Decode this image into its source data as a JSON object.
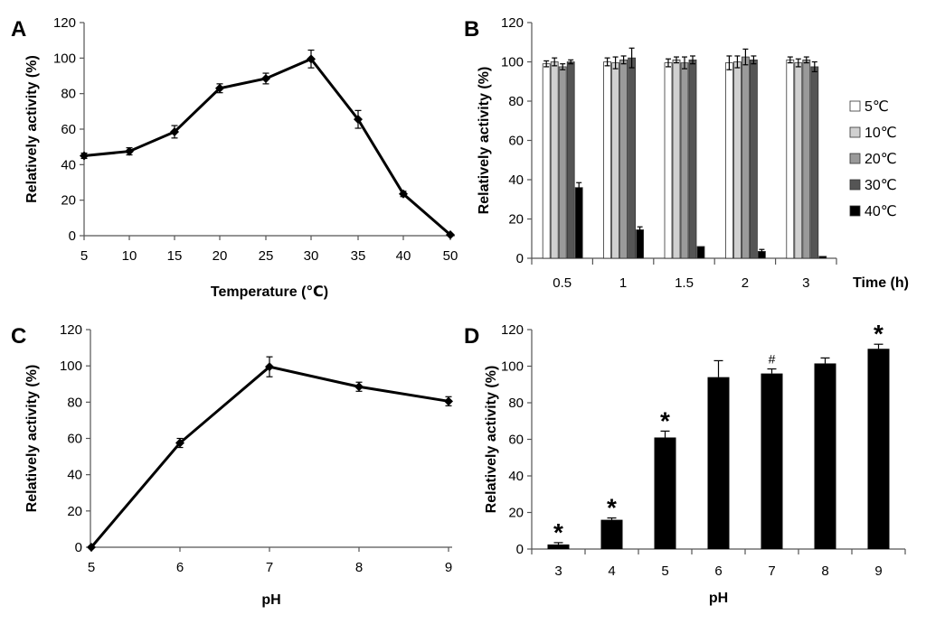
{
  "chart_data": [
    {
      "panel": "A",
      "type": "line",
      "x": [
        "5",
        "10",
        "15",
        "20",
        "25",
        "30",
        "35",
        "40",
        "50"
      ],
      "values": [
        45,
        47.5,
        58.5,
        83,
        88.5,
        99.5,
        65.5,
        23.5,
        0.5
      ],
      "errors": [
        1.5,
        2,
        3.5,
        2.5,
        3,
        5,
        5,
        1.5,
        0.5
      ],
      "ylim": [
        0,
        120
      ],
      "yticks": [
        "0",
        "20",
        "40",
        "60",
        "80",
        "100",
        "120"
      ],
      "xlabel": "Temperature (℃)",
      "ylabel": "Relatively activity (%)"
    },
    {
      "panel": "B",
      "type": "bar",
      "categories": [
        "0.5",
        "1",
        "1.5",
        "2",
        "3"
      ],
      "xlabel": "Time (h)",
      "ylabel": "Relatively activity (%)",
      "ylim": [
        0,
        120
      ],
      "yticks": [
        "0",
        "20",
        "40",
        "60",
        "80",
        "100",
        "120"
      ],
      "legend_position": "right",
      "series": [
        {
          "name": "5℃",
          "color": "#ffffff",
          "values": [
            99,
            100,
            99.5,
            99.5,
            101
          ],
          "errors": [
            1.5,
            2,
            2,
            3.5,
            1.5
          ]
        },
        {
          "name": "10℃",
          "color": "#d0d0d0",
          "values": [
            100,
            99.5,
            101,
            100,
            99.5
          ],
          "errors": [
            2,
            3,
            1.5,
            3,
            2
          ]
        },
        {
          "name": "20℃",
          "color": "#9a9a9a",
          "values": [
            97.5,
            101,
            99.5,
            102.5,
            101
          ],
          "errors": [
            1.5,
            2,
            3,
            4,
            1.5
          ]
        },
        {
          "name": "30℃",
          "color": "#555555",
          "values": [
            100,
            102,
            101,
            101,
            97.5
          ],
          "errors": [
            1,
            5,
            2,
            2,
            2.5
          ]
        },
        {
          "name": "40℃",
          "color": "#000000",
          "values": [
            36,
            14.5,
            6,
            3.5,
            1
          ],
          "errors": [
            2.5,
            1.5,
            0,
            1,
            0
          ]
        }
      ]
    },
    {
      "panel": "C",
      "type": "line",
      "x": [
        "5",
        "6",
        "7",
        "8",
        "9"
      ],
      "values": [
        0,
        57.5,
        99.5,
        88.5,
        80.5
      ],
      "errors": [
        0,
        2.5,
        5.5,
        2.5,
        2.5
      ],
      "ylim": [
        0,
        120
      ],
      "yticks": [
        "0",
        "20",
        "40",
        "60",
        "80",
        "100",
        "120"
      ],
      "xlabel": "pH",
      "ylabel": "Relatively activity (%)"
    },
    {
      "panel": "D",
      "type": "bar",
      "categories": [
        "3",
        "4",
        "5",
        "6",
        "7",
        "8",
        "9"
      ],
      "values": [
        2.5,
        16,
        61,
        94,
        96,
        101.5,
        109.5
      ],
      "errors": [
        1,
        1,
        3.5,
        9,
        2.5,
        3,
        2.5
      ],
      "annotations": [
        "*",
        "*",
        "*",
        "",
        "#",
        "",
        "*"
      ],
      "ylim": [
        0,
        120
      ],
      "yticks": [
        "0",
        "20",
        "40",
        "60",
        "80",
        "100",
        "120"
      ],
      "xlabel": "pH",
      "ylabel": "Relatively activity (%)"
    }
  ]
}
